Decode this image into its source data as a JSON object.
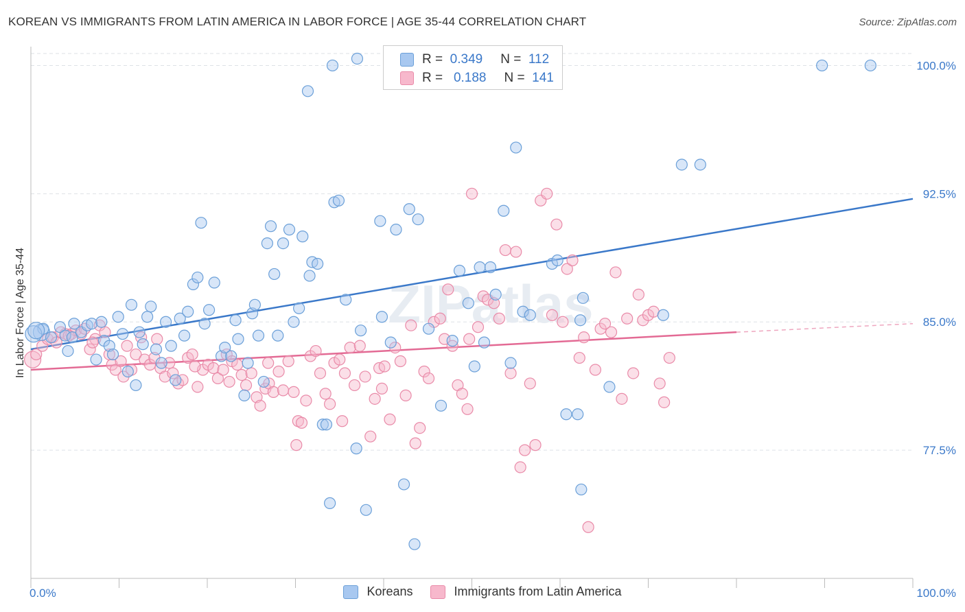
{
  "header": {
    "title": "KOREAN VS IMMIGRANTS FROM LATIN AMERICA IN LABOR FORCE | AGE 35-44 CORRELATION CHART",
    "source": "Source: ZipAtlas.com"
  },
  "watermark": "ZIPatlas",
  "legend_top": {
    "rows": [
      {
        "r_label": "R =",
        "r_value": "0.349",
        "n_label": "N =",
        "n_value": "112",
        "color": "#a8c8f0"
      },
      {
        "r_label": "R =",
        "r_value": "0.188",
        "n_label": "N =",
        "n_value": "141",
        "color": "#f7b8cc"
      }
    ]
  },
  "legend_bottom": [
    {
      "label": "Koreans",
      "color": "#a8c8f0"
    },
    {
      "label": "Immigrants from Latin America",
      "color": "#f7b8cc"
    }
  ],
  "chart_data": {
    "type": "scatter",
    "ylabel": "In Labor Force | Age 35-44",
    "x_tick_labels": [
      "0.0%",
      "100.0%"
    ],
    "y_tick_labels": [
      "100.0%",
      "92.5%",
      "85.0%",
      "77.5%"
    ],
    "y_ticks": [
      100.0,
      92.5,
      85.0,
      77.5
    ],
    "xlim": [
      0,
      100
    ],
    "ylim": [
      70.0,
      100.7
    ],
    "grid": true,
    "colors": {
      "koreans_fill": "#a8c8f0",
      "koreans_stroke": "#6a9fd8",
      "koreans_line": "#3a78c9",
      "latin_fill": "#f7b8cc",
      "latin_stroke": "#e98aa8",
      "latin_line": "#e36a94",
      "tick_label": "#3a78c9"
    },
    "series": [
      {
        "name": "Koreans",
        "trend": {
          "x": [
            0,
            100
          ],
          "y": [
            83.4,
            92.2
          ]
        },
        "points": [
          [
            1.2,
            84.4
          ],
          [
            1.4,
            84.6
          ],
          [
            2.3,
            84.1
          ],
          [
            3.3,
            84.7
          ],
          [
            3.9,
            84.2
          ],
          [
            4.2,
            83.3
          ],
          [
            4.7,
            84.1
          ],
          [
            4.9,
            84.9
          ],
          [
            5.7,
            84.4
          ],
          [
            6.4,
            84.8
          ],
          [
            6.9,
            84.9
          ],
          [
            7.4,
            82.8
          ],
          [
            8.0,
            85.0
          ],
          [
            8.3,
            83.9
          ],
          [
            8.9,
            83.6
          ],
          [
            9.3,
            83.1
          ],
          [
            9.9,
            85.3
          ],
          [
            10.4,
            84.3
          ],
          [
            11.0,
            82.1
          ],
          [
            11.4,
            86.0
          ],
          [
            11.9,
            81.3
          ],
          [
            12.3,
            84.4
          ],
          [
            12.7,
            83.7
          ],
          [
            13.2,
            85.3
          ],
          [
            13.6,
            85.9
          ],
          [
            14.2,
            83.4
          ],
          [
            14.8,
            82.6
          ],
          [
            15.3,
            85.0
          ],
          [
            15.9,
            83.6
          ],
          [
            16.4,
            81.6
          ],
          [
            16.9,
            85.2
          ],
          [
            17.4,
            84.2
          ],
          [
            17.8,
            85.6
          ],
          [
            18.4,
            87.2
          ],
          [
            18.9,
            87.6
          ],
          [
            19.3,
            90.8
          ],
          [
            19.7,
            84.9
          ],
          [
            20.2,
            85.7
          ],
          [
            20.8,
            87.3
          ],
          [
            21.6,
            83.0
          ],
          [
            22.0,
            83.5
          ],
          [
            22.7,
            83.0
          ],
          [
            23.2,
            85.1
          ],
          [
            23.5,
            84.0
          ],
          [
            24.2,
            80.7
          ],
          [
            24.6,
            82.6
          ],
          [
            25.1,
            85.5
          ],
          [
            25.4,
            86.0
          ],
          [
            25.8,
            84.2
          ],
          [
            26.4,
            81.5
          ],
          [
            26.8,
            89.6
          ],
          [
            27.2,
            90.6
          ],
          [
            27.6,
            87.8
          ],
          [
            28.0,
            84.2
          ],
          [
            28.6,
            89.6
          ],
          [
            29.3,
            90.4
          ],
          [
            29.8,
            85.0
          ],
          [
            30.4,
            85.8
          ],
          [
            30.8,
            90.0
          ],
          [
            31.6,
            87.7
          ],
          [
            31.9,
            88.5
          ],
          [
            32.5,
            88.4
          ],
          [
            33.1,
            79.0
          ],
          [
            33.5,
            79.0
          ],
          [
            33.9,
            74.4
          ],
          [
            34.4,
            92.0
          ],
          [
            34.9,
            92.1
          ],
          [
            35.7,
            86.3
          ],
          [
            36.9,
            77.6
          ],
          [
            37.4,
            84.5
          ],
          [
            38.0,
            74.0
          ],
          [
            39.6,
            90.9
          ],
          [
            40.8,
            83.8
          ],
          [
            41.4,
            90.4
          ],
          [
            42.3,
            75.5
          ],
          [
            42.9,
            91.6
          ],
          [
            43.5,
            72.0
          ],
          [
            43.9,
            91.0
          ],
          [
            45.1,
            84.6
          ],
          [
            46.5,
            80.1
          ],
          [
            47.8,
            83.9
          ],
          [
            48.6,
            88.0
          ],
          [
            49.6,
            86.1
          ],
          [
            50.3,
            82.4
          ],
          [
            50.9,
            88.2
          ],
          [
            51.4,
            83.8
          ],
          [
            52.1,
            88.2
          ],
          [
            52.7,
            86.6
          ],
          [
            53.6,
            91.5
          ],
          [
            54.4,
            82.6
          ],
          [
            55.0,
            95.2
          ],
          [
            55.8,
            85.6
          ],
          [
            56.6,
            85.4
          ],
          [
            59.1,
            88.4
          ],
          [
            59.7,
            88.6
          ],
          [
            60.7,
            79.6
          ],
          [
            62.0,
            79.6
          ],
          [
            62.3,
            85.1
          ],
          [
            62.4,
            75.2
          ],
          [
            62.6,
            86.4
          ],
          [
            65.6,
            81.2
          ],
          [
            71.7,
            85.4
          ],
          [
            73.8,
            94.2
          ],
          [
            75.9,
            94.2
          ],
          [
            89.7,
            100.0
          ],
          [
            95.2,
            100.0
          ],
          [
            34.2,
            100.0
          ],
          [
            37.0,
            101.0
          ],
          [
            31.4,
            98.5
          ],
          [
            39.8,
            85.3
          ],
          [
            0.3,
            84.3
          ],
          [
            0.6,
            84.5
          ]
        ],
        "sizes": {
          "large": [
            [
              1.2,
              84.4
            ],
            [
              0.3,
              84.3
            ],
            [
              0.6,
              84.5
            ]
          ]
        }
      },
      {
        "name": "Immigrants from Latin America",
        "trend": {
          "x": [
            0,
            80
          ],
          "y": [
            82.2,
            84.4
          ],
          "dashed_to": {
            "x": 100,
            "y": 84.9
          }
        },
        "points": [
          [
            0.2,
            82.8
          ],
          [
            0.6,
            83.1
          ],
          [
            1.3,
            83.6
          ],
          [
            1.9,
            84.0
          ],
          [
            2.5,
            84.1
          ],
          [
            2.9,
            83.8
          ],
          [
            3.4,
            84.4
          ],
          [
            3.9,
            84.3
          ],
          [
            4.6,
            84.3
          ],
          [
            5.1,
            84.5
          ],
          [
            5.7,
            84.3
          ],
          [
            6.1,
            84.6
          ],
          [
            6.7,
            83.4
          ],
          [
            7.3,
            84.0
          ],
          [
            7.8,
            84.8
          ],
          [
            8.4,
            84.4
          ],
          [
            8.9,
            83.1
          ],
          [
            9.2,
            82.5
          ],
          [
            9.6,
            82.2
          ],
          [
            10.2,
            82.7
          ],
          [
            10.9,
            83.6
          ],
          [
            11.4,
            82.2
          ],
          [
            11.9,
            83.1
          ],
          [
            12.5,
            84.1
          ],
          [
            12.9,
            82.8
          ],
          [
            13.5,
            82.5
          ],
          [
            14.0,
            82.9
          ],
          [
            14.7,
            82.3
          ],
          [
            15.2,
            81.8
          ],
          [
            15.7,
            82.6
          ],
          [
            16.1,
            82.0
          ],
          [
            16.7,
            81.4
          ],
          [
            17.2,
            81.6
          ],
          [
            17.8,
            82.9
          ],
          [
            18.3,
            83.1
          ],
          [
            18.9,
            81.2
          ],
          [
            19.5,
            82.2
          ],
          [
            20.1,
            82.5
          ],
          [
            20.7,
            82.3
          ],
          [
            21.2,
            81.7
          ],
          [
            21.8,
            82.2
          ],
          [
            22.2,
            83.1
          ],
          [
            22.8,
            82.7
          ],
          [
            23.4,
            82.5
          ],
          [
            23.9,
            81.9
          ],
          [
            24.4,
            81.3
          ],
          [
            25.0,
            82.0
          ],
          [
            25.6,
            80.6
          ],
          [
            26.0,
            80.1
          ],
          [
            26.6,
            81.1
          ],
          [
            27.0,
            81.4
          ],
          [
            27.5,
            80.9
          ],
          [
            28.1,
            82.1
          ],
          [
            28.6,
            81.0
          ],
          [
            29.2,
            82.7
          ],
          [
            29.8,
            80.9
          ],
          [
            30.3,
            79.2
          ],
          [
            30.7,
            79.1
          ],
          [
            31.2,
            80.4
          ],
          [
            31.7,
            83.0
          ],
          [
            32.3,
            83.3
          ],
          [
            32.8,
            82.0
          ],
          [
            33.4,
            80.8
          ],
          [
            33.9,
            80.2
          ],
          [
            34.4,
            82.6
          ],
          [
            35.0,
            82.8
          ],
          [
            35.6,
            82.0
          ],
          [
            36.2,
            83.5
          ],
          [
            36.7,
            81.3
          ],
          [
            37.3,
            83.6
          ],
          [
            37.9,
            81.8
          ],
          [
            38.5,
            78.3
          ],
          [
            39.0,
            80.5
          ],
          [
            39.5,
            82.3
          ],
          [
            40.1,
            82.4
          ],
          [
            40.7,
            79.3
          ],
          [
            41.3,
            83.5
          ],
          [
            41.9,
            82.7
          ],
          [
            42.5,
            80.7
          ],
          [
            43.1,
            84.8
          ],
          [
            43.6,
            77.9
          ],
          [
            44.1,
            78.8
          ],
          [
            44.6,
            82.1
          ],
          [
            45.1,
            81.7
          ],
          [
            45.7,
            85.0
          ],
          [
            46.4,
            85.2
          ],
          [
            46.9,
            84.0
          ],
          [
            47.3,
            86.9
          ],
          [
            47.8,
            83.6
          ],
          [
            48.4,
            81.3
          ],
          [
            48.9,
            80.8
          ],
          [
            49.5,
            79.9
          ],
          [
            50.0,
            92.5
          ],
          [
            50.7,
            84.7
          ],
          [
            51.3,
            86.5
          ],
          [
            51.8,
            86.3
          ],
          [
            52.5,
            86.1
          ],
          [
            53.1,
            85.2
          ],
          [
            53.8,
            89.2
          ],
          [
            54.4,
            82.0
          ],
          [
            55.0,
            89.1
          ],
          [
            55.5,
            76.5
          ],
          [
            56.0,
            77.5
          ],
          [
            56.6,
            81.4
          ],
          [
            57.2,
            77.8
          ],
          [
            57.8,
            92.1
          ],
          [
            58.5,
            92.5
          ],
          [
            59.1,
            85.4
          ],
          [
            59.6,
            90.7
          ],
          [
            60.3,
            85.0
          ],
          [
            60.8,
            88.1
          ],
          [
            61.4,
            88.6
          ],
          [
            62.2,
            82.9
          ],
          [
            62.7,
            84.1
          ],
          [
            63.2,
            73.0
          ],
          [
            64.0,
            82.2
          ],
          [
            64.6,
            84.6
          ],
          [
            65.1,
            84.9
          ],
          [
            65.8,
            84.4
          ],
          [
            66.3,
            87.9
          ],
          [
            67.0,
            80.5
          ],
          [
            67.6,
            85.2
          ],
          [
            68.3,
            82.0
          ],
          [
            68.9,
            86.6
          ],
          [
            69.4,
            85.1
          ],
          [
            70.0,
            85.4
          ],
          [
            70.6,
            85.6
          ],
          [
            71.3,
            81.4
          ],
          [
            71.8,
            80.3
          ],
          [
            72.4,
            82.9
          ],
          [
            4.3,
            84.2
          ],
          [
            7.0,
            83.8
          ],
          [
            10.5,
            81.8
          ],
          [
            14.3,
            84.0
          ],
          [
            18.6,
            82.4
          ],
          [
            22.5,
            81.5
          ],
          [
            26.9,
            82.6
          ],
          [
            30.1,
            77.8
          ],
          [
            35.3,
            79.2
          ],
          [
            39.8,
            81.1
          ],
          [
            49.7,
            84.0
          ]
        ],
        "sizes": {
          "large": [
            [
              0.2,
              82.8
            ]
          ]
        }
      }
    ]
  }
}
